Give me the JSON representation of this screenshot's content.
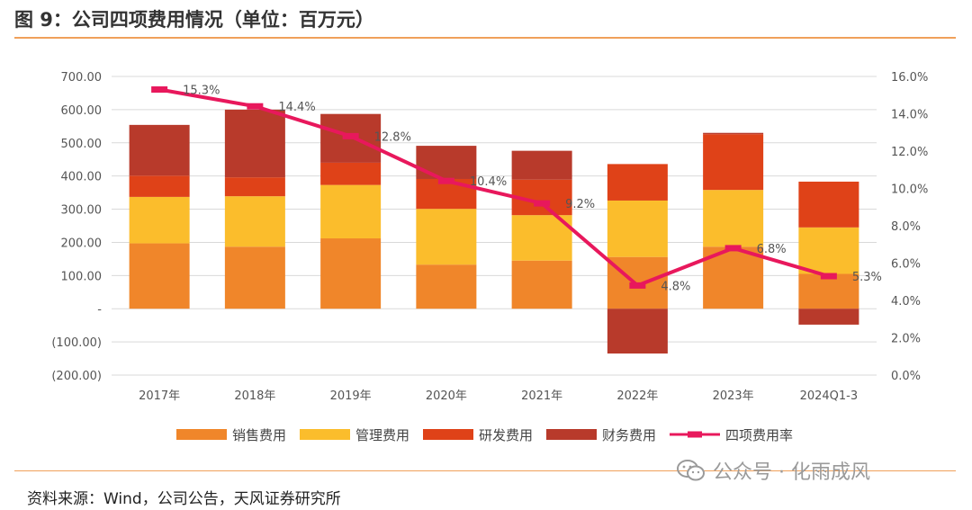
{
  "title": "图 9：公司四项费用情况（单位：百万元）",
  "source": "资料来源：Wind，公司公告，天风证券研究所",
  "watermark": "公众号 · 化雨成风",
  "chart_data": {
    "type": "bar",
    "stacked": true,
    "categories": [
      "2017年",
      "2018年",
      "2019年",
      "2020年",
      "2021年",
      "2022年",
      "2023年",
      "2024Q1-3"
    ],
    "series": [
      {
        "name": "销售费用",
        "color": "#f0862a",
        "axis": "left",
        "values": [
          197,
          187,
          212,
          133,
          145,
          156,
          187,
          105
        ]
      },
      {
        "name": "管理费用",
        "color": "#fbbd2c",
        "axis": "left",
        "values": [
          140,
          152,
          161,
          168,
          137,
          170,
          171,
          140
        ]
      },
      {
        "name": "研发费用",
        "color": "#df4218",
        "axis": "left",
        "values": [
          64,
          57,
          67,
          90,
          107,
          110,
          168,
          138
        ]
      },
      {
        "name": "财务费用",
        "color": "#b83a2b",
        "axis": "left",
        "values": [
          153,
          204,
          147,
          100,
          87,
          -135,
          4,
          -48
        ]
      },
      {
        "name": "四项费用率",
        "color": "#e8185c",
        "axis": "right",
        "type": "line",
        "values": [
          15.3,
          14.4,
          12.8,
          10.4,
          9.2,
          4.8,
          6.8,
          5.3
        ],
        "labels": [
          "15.3%",
          "14.4%",
          "12.8%",
          "10.4%",
          "9.2%",
          "4.8%",
          "6.8%",
          "5.3%"
        ]
      }
    ],
    "y_left": {
      "min": -200,
      "max": 700,
      "ticks": [
        "(200.00)",
        "(100.00)",
        "-",
        "100.00",
        "200.00",
        "300.00",
        "400.00",
        "500.00",
        "600.00",
        "700.00"
      ]
    },
    "y_right": {
      "min": 0,
      "max": 16,
      "ticks": [
        "0.0%",
        "2.0%",
        "4.0%",
        "6.0%",
        "8.0%",
        "10.0%",
        "12.0%",
        "14.0%",
        "16.0%"
      ]
    },
    "grid": true,
    "legend_position": "bottom"
  }
}
